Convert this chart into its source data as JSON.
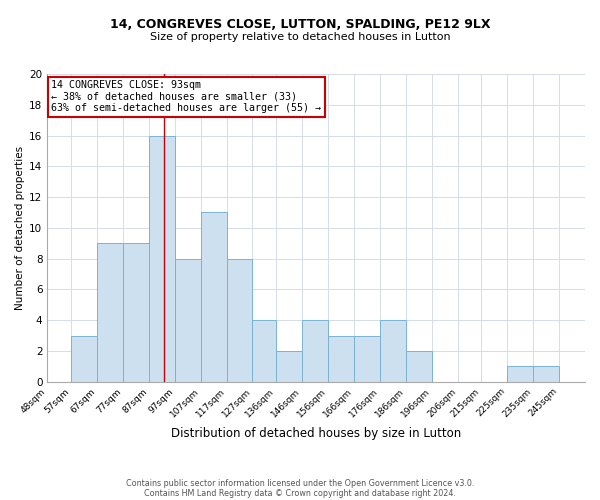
{
  "title1": "14, CONGREVES CLOSE, LUTTON, SPALDING, PE12 9LX",
  "title2": "Size of property relative to detached houses in Lutton",
  "xlabel": "Distribution of detached houses by size in Lutton",
  "ylabel": "Number of detached properties",
  "bin_labels": [
    "48sqm",
    "57sqm",
    "67sqm",
    "77sqm",
    "87sqm",
    "97sqm",
    "107sqm",
    "117sqm",
    "127sqm",
    "136sqm",
    "146sqm",
    "156sqm",
    "166sqm",
    "176sqm",
    "186sqm",
    "196sqm",
    "206sqm",
    "215sqm",
    "225sqm",
    "235sqm",
    "245sqm"
  ],
  "bin_edges": [
    48,
    57,
    67,
    77,
    87,
    97,
    107,
    117,
    127,
    136,
    146,
    156,
    166,
    176,
    186,
    196,
    206,
    215,
    225,
    235,
    245
  ],
  "bar_heights": [
    0,
    3,
    9,
    9,
    16,
    8,
    11,
    8,
    4,
    2,
    4,
    3,
    3,
    4,
    2,
    0,
    0,
    0,
    1,
    1,
    0
  ],
  "bar_color": "#cce0f0",
  "bar_edge_color": "#7ab3d4",
  "property_size": 93,
  "vline_color": "#cc0000",
  "annotation_line1": "14 CONGREVES CLOSE: 93sqm",
  "annotation_line2": "← 38% of detached houses are smaller (33)",
  "annotation_line3": "63% of semi-detached houses are larger (55) →",
  "annotation_box_color": "#ffffff",
  "annotation_box_edge": "#cc0000",
  "ylim": [
    0,
    20
  ],
  "yticks": [
    0,
    2,
    4,
    6,
    8,
    10,
    12,
    14,
    16,
    18,
    20
  ],
  "footnote1": "Contains HM Land Registry data © Crown copyright and database right 2024.",
  "footnote2": "Contains public sector information licensed under the Open Government Licence v3.0.",
  "bg_color": "#ffffff",
  "grid_color": "#d4dde6"
}
